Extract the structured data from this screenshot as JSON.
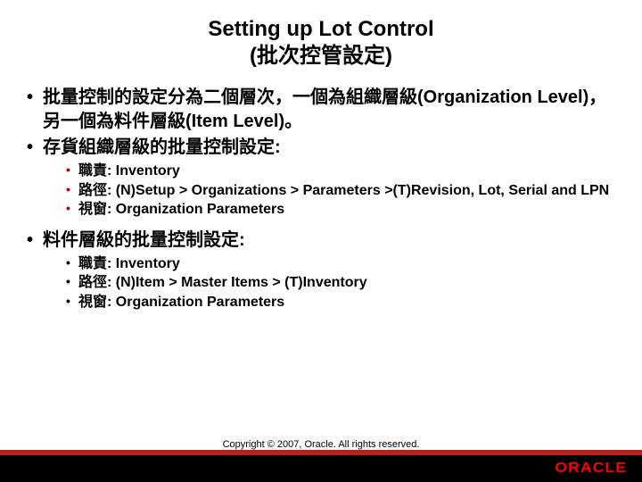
{
  "title_line1": "Setting up Lot Control",
  "title_line2": "(批次控管設定)",
  "bullets": {
    "b1": "批量控制的設定分為二個層次，一個為組織層級(Organization Level)，另一個為料件層級(Item Level)。",
    "b2": "存貨組織層級的批量控制設定:",
    "b2_1": "職責: Inventory",
    "b2_2": "路徑: (N)Setup > Organizations > Parameters >(T)Revision, Lot, Serial and LPN",
    "b2_3": "視窗: Organization Parameters",
    "b3": "料件層級的批量控制設定:",
    "b3_1": "職責: Inventory",
    "b3_2": "路徑: (N)Item > Master Items > (T)Inventory",
    "b3_3": "視窗: Organization Parameters"
  },
  "copyright": "Copyright © 2007, Oracle. All rights reserved.",
  "logo": "ORACLE",
  "colors": {
    "bar_red": "#b22222",
    "bar_black": "#000000",
    "logo_red": "#ff0000",
    "text": "#000000",
    "bg": "#ffffff"
  }
}
